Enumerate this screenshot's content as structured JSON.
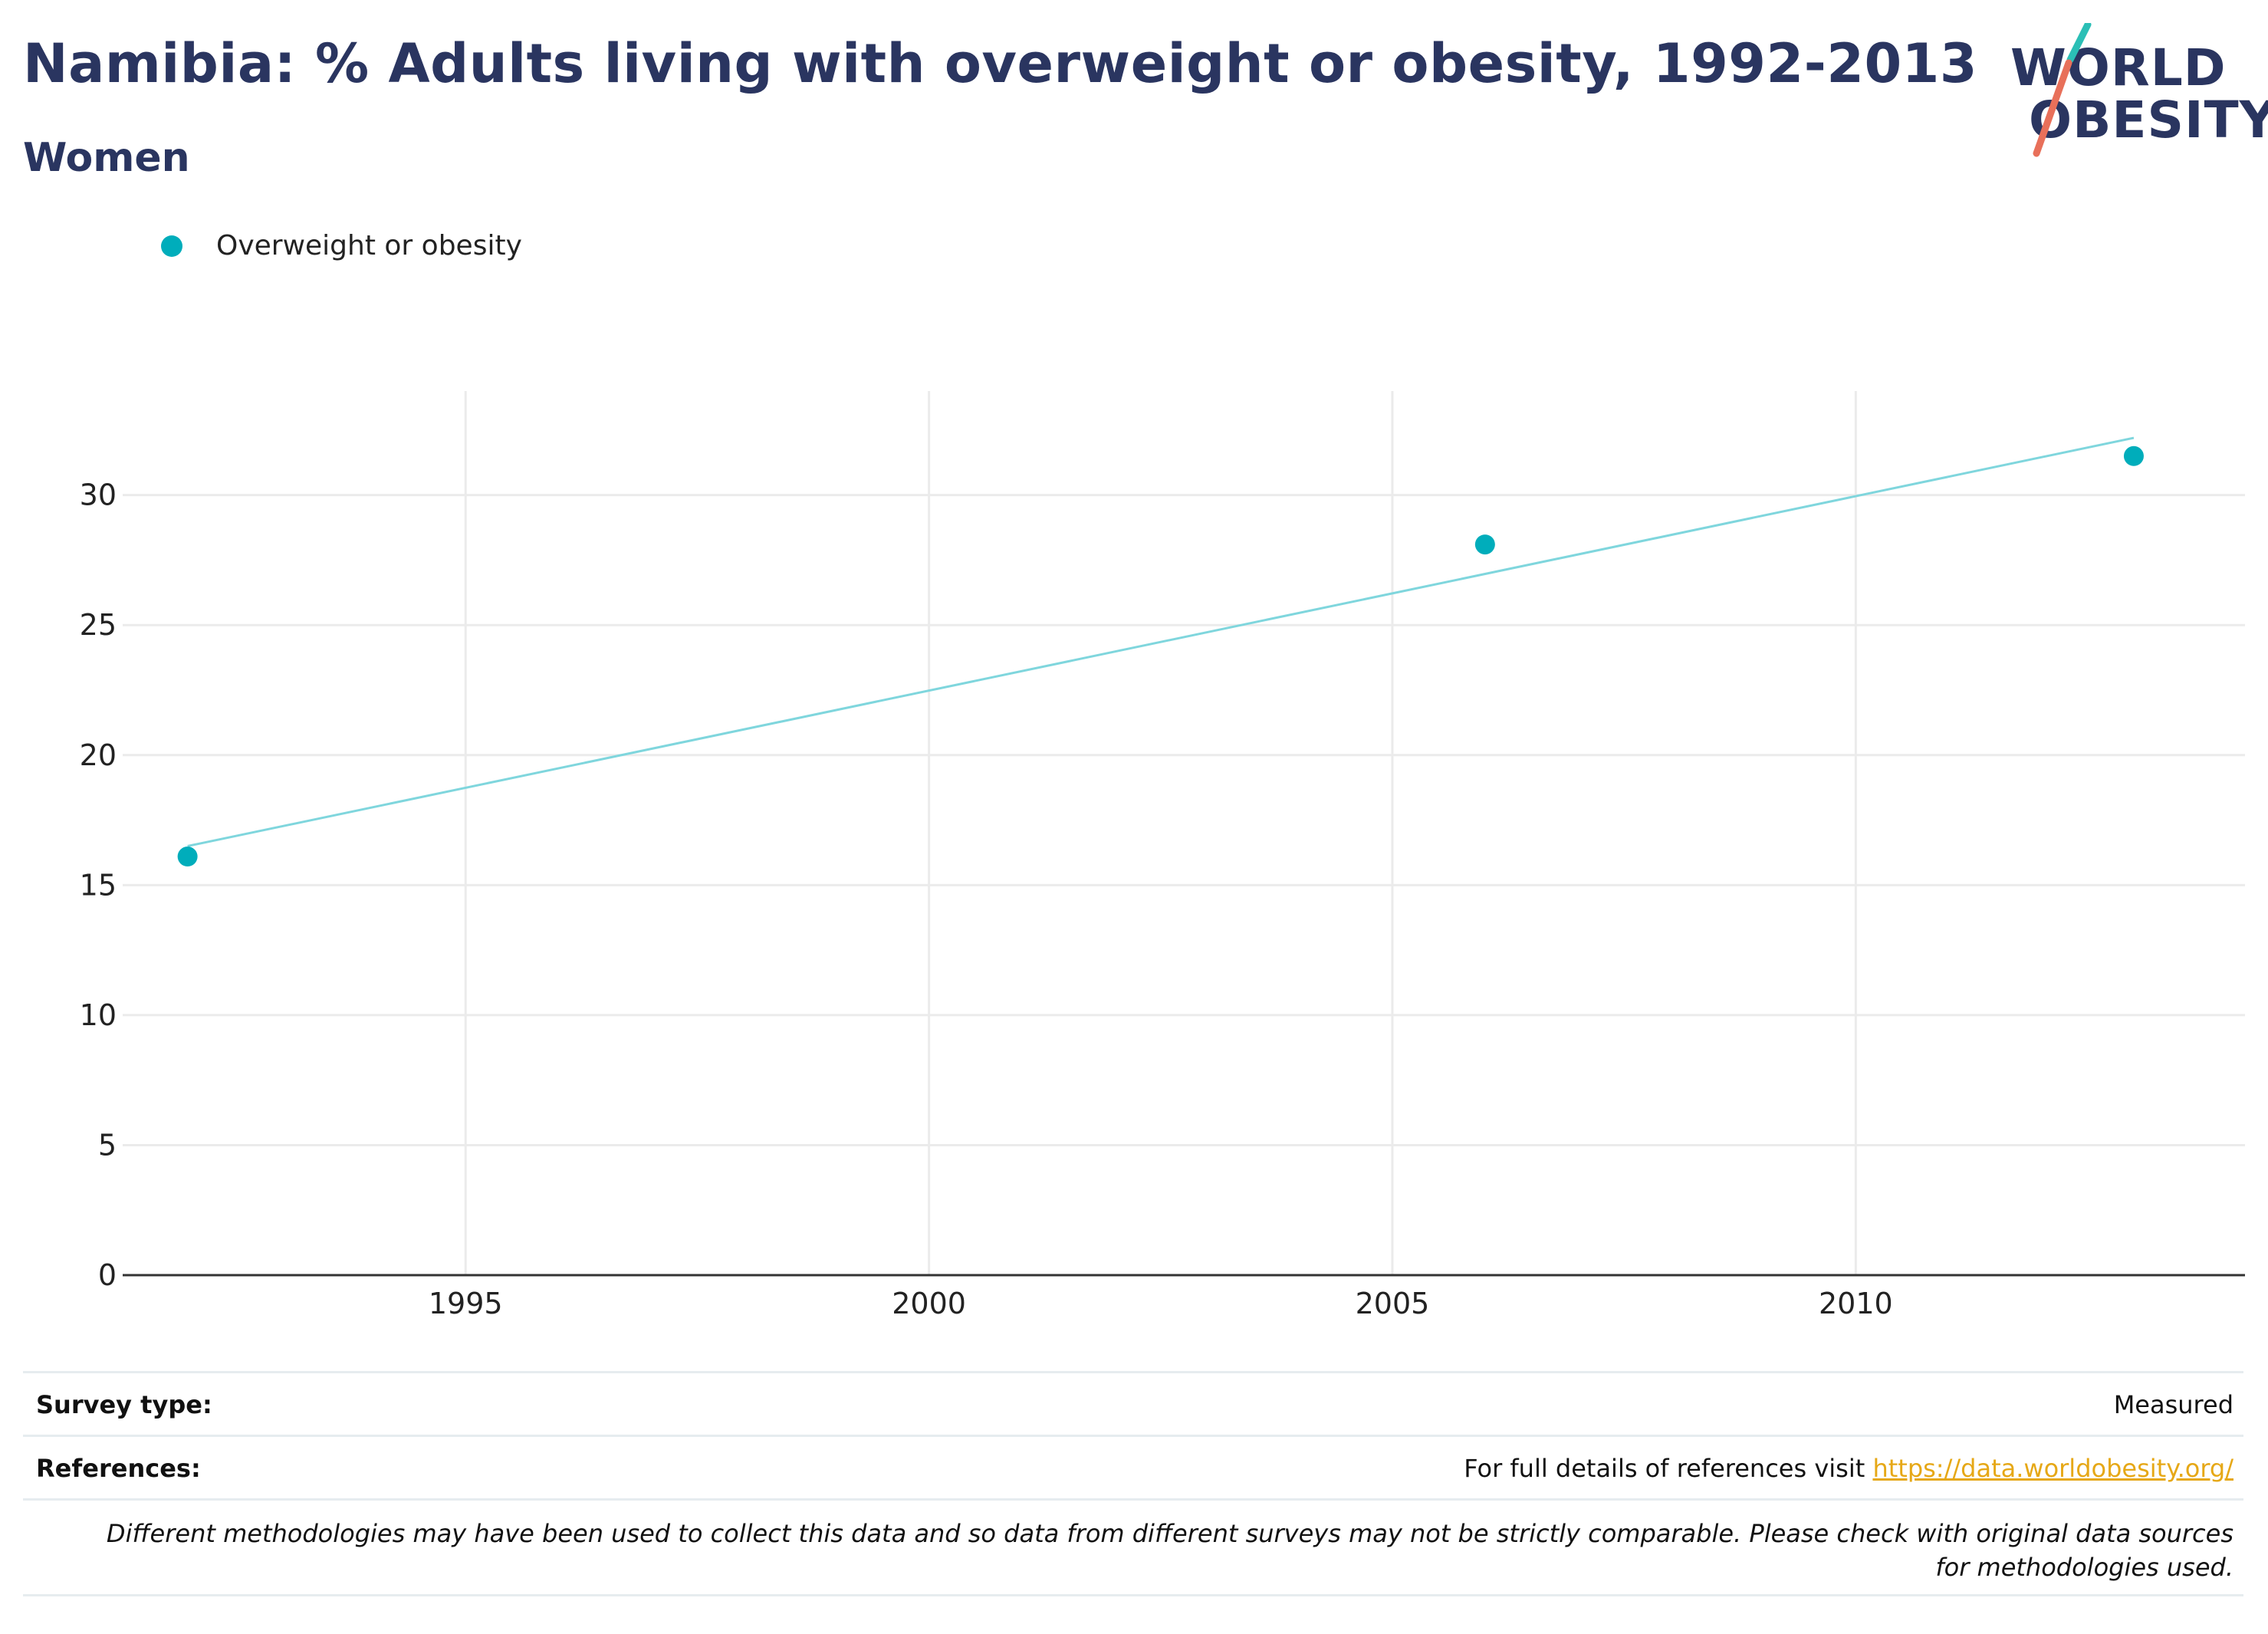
{
  "title": "Namibia: % Adults living with overweight or obesity, 1992-2013",
  "subtitle": "Women",
  "logo": {
    "line1": "WORLD",
    "line2": "OBESITY"
  },
  "colors": {
    "primary": "#2a3560",
    "series": "#00adbb",
    "trend": "#7fd6dd",
    "link": "#e6a817",
    "logo_teal": "#2bbfb6",
    "logo_coral": "#e8705a"
  },
  "legend": {
    "label": "Overweight or obesity"
  },
  "chart_data": {
    "type": "scatter",
    "title": "Namibia: % Adults living with overweight or obesity, 1992-2013",
    "subtitle": "Women",
    "xlabel": "",
    "ylabel": "",
    "xlim": [
      1991.3,
      2014.2
    ],
    "ylim": [
      0,
      34
    ],
    "x_ticks": [
      1995,
      2000,
      2005,
      2010
    ],
    "y_ticks": [
      0,
      5,
      10,
      15,
      20,
      25,
      30
    ],
    "grid": true,
    "legend_position": "top-left",
    "series": [
      {
        "name": "Overweight or obesity",
        "points": [
          [
            1992,
            16.1
          ],
          [
            2006,
            28.1
          ],
          [
            2013,
            31.5
          ]
        ]
      }
    ],
    "trendline": {
      "from": [
        1992,
        16.5
      ],
      "to": [
        2013,
        32.2
      ]
    }
  },
  "footer": {
    "survey_type_label": "Survey type:",
    "survey_type_value": "Measured",
    "references_label": "References:",
    "references_text": "For full details of references visit ",
    "references_link": "https://data.worldobesity.org/",
    "note": "Different methodologies may have been used to collect this data and so data from different surveys may not be strictly comparable. Please check with original data sources for methodologies used."
  }
}
